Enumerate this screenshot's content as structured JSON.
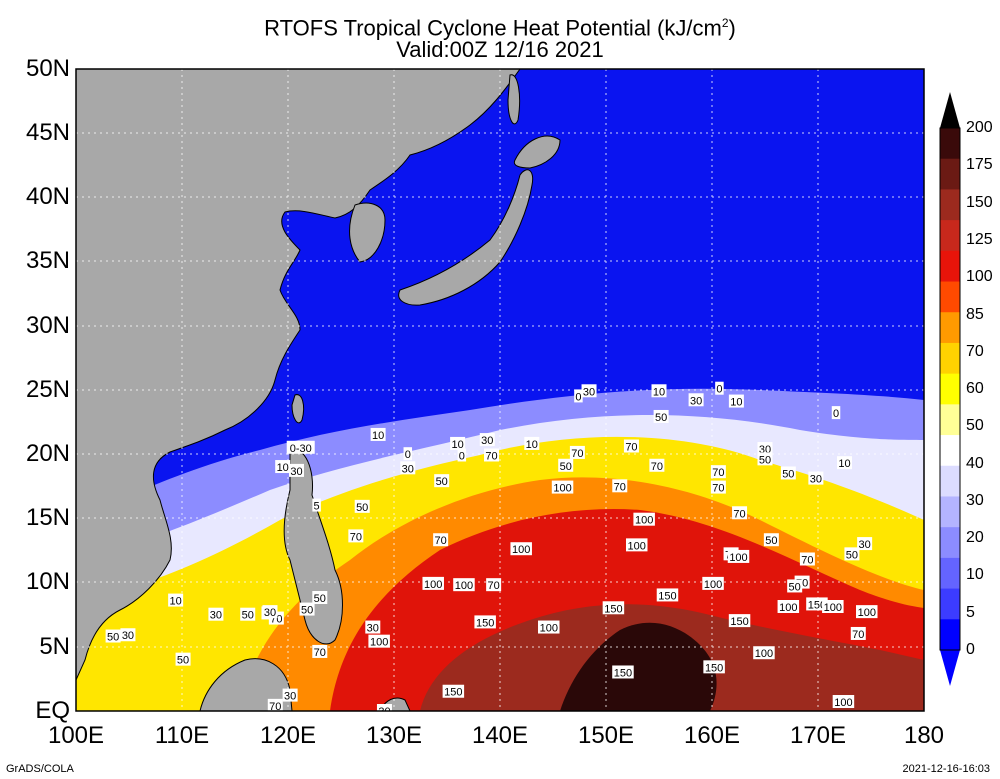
{
  "title": {
    "line1": "RTOFS Tropical Cyclone Heat Potential (kJ/cm",
    "line1_sup": "2",
    "line1_end": ")",
    "line2": "Valid:00Z 12/16 2021"
  },
  "map": {
    "lon_range": [
      100,
      180
    ],
    "lat_range": [
      0,
      50
    ],
    "y_ticks": [
      "50N",
      "45N",
      "40N",
      "35N",
      "30N",
      "25N",
      "20N",
      "15N",
      "10N",
      "5N",
      "EQ"
    ],
    "x_ticks": [
      "100E",
      "110E",
      "120E",
      "130E",
      "140E",
      "150E",
      "160E",
      "170E",
      "180"
    ],
    "grid": "dotted",
    "land_color": "#a8a8a8",
    "ocean_cold_color": "#0a14f0"
  },
  "colorbar": {
    "labels": [
      "200",
      "175",
      "150",
      "125",
      "100",
      "85",
      "70",
      "60",
      "50",
      "40",
      "30",
      "20",
      "10",
      "5",
      "0"
    ],
    "colors": [
      "#3a0a0a",
      "#6b1a14",
      "#9c2a1e",
      "#c8281c",
      "#e8140a",
      "#ff4a00",
      "#ff9a00",
      "#ffd200",
      "#ffff00",
      "#ffff96",
      "#ffffff",
      "#dcdcff",
      "#b4b4ff",
      "#8c8cff",
      "#6464ff",
      "#3c3cff",
      "#0000ff"
    ],
    "cap_top_color": "#000000",
    "cap_bottom_color": "#0000ff"
  },
  "contour_labels": [
    {
      "text": "10",
      "lon": 128.5,
      "lat": 21.5
    },
    {
      "text": "0-30",
      "lon": 121.2,
      "lat": 20.5
    },
    {
      "text": "10",
      "lon": 119.5,
      "lat": 19.0
    },
    {
      "text": "30",
      "lon": 120.8,
      "lat": 18.7
    },
    {
      "text": "0",
      "lon": 131.3,
      "lat": 20.0
    },
    {
      "text": "30",
      "lon": 131.3,
      "lat": 18.9
    },
    {
      "text": "50",
      "lon": 134.5,
      "lat": 17.9
    },
    {
      "text": "50",
      "lon": 127.0,
      "lat": 15.9
    },
    {
      "text": "5",
      "lon": 122.7,
      "lat": 16.0
    },
    {
      "text": "70",
      "lon": 126.4,
      "lat": 13.6
    },
    {
      "text": "70",
      "lon": 134.4,
      "lat": 13.3
    },
    {
      "text": "10",
      "lon": 136.0,
      "lat": 20.8
    },
    {
      "text": "0",
      "lon": 136.4,
      "lat": 19.9
    },
    {
      "text": "30",
      "lon": 138.8,
      "lat": 21.1
    },
    {
      "text": "70",
      "lon": 139.2,
      "lat": 19.9
    },
    {
      "text": "10",
      "lon": 143.0,
      "lat": 20.8
    },
    {
      "text": "50",
      "lon": 146.2,
      "lat": 19.1
    },
    {
      "text": "70",
      "lon": 147.3,
      "lat": 20.1
    },
    {
      "text": "100",
      "lon": 145.9,
      "lat": 17.4
    },
    {
      "text": "70",
      "lon": 151.3,
      "lat": 17.5
    },
    {
      "text": "70",
      "lon": 152.4,
      "lat": 20.6
    },
    {
      "text": "70",
      "lon": 154.8,
      "lat": 19.1
    },
    {
      "text": "50",
      "lon": 155.2,
      "lat": 22.9
    },
    {
      "text": "10",
      "lon": 155.0,
      "lat": 24.9
    },
    {
      "text": "30",
      "lon": 148.4,
      "lat": 24.9
    },
    {
      "text": "0",
      "lon": 147.4,
      "lat": 24.5
    },
    {
      "text": "30",
      "lon": 158.5,
      "lat": 24.2
    },
    {
      "text": "0",
      "lon": 160.7,
      "lat": 25.1
    },
    {
      "text": "10",
      "lon": 162.3,
      "lat": 24.1
    },
    {
      "text": "0",
      "lon": 171.7,
      "lat": 23.2
    },
    {
      "text": "70",
      "lon": 160.6,
      "lat": 18.6
    },
    {
      "text": "70",
      "lon": 160.6,
      "lat": 17.4
    },
    {
      "text": "100",
      "lon": 153.6,
      "lat": 14.9
    },
    {
      "text": "100",
      "lon": 152.9,
      "lat": 12.9
    },
    {
      "text": "100",
      "lon": 142.0,
      "lat": 12.6
    },
    {
      "text": "70",
      "lon": 162.6,
      "lat": 15.4
    },
    {
      "text": "70",
      "lon": 161.8,
      "lat": 12.2
    },
    {
      "text": "100",
      "lon": 162.5,
      "lat": 12.0
    },
    {
      "text": "50",
      "lon": 165.6,
      "lat": 13.3
    },
    {
      "text": "30",
      "lon": 165.0,
      "lat": 20.4
    },
    {
      "text": "50",
      "lon": 165.0,
      "lat": 19.6
    },
    {
      "text": "50",
      "lon": 167.2,
      "lat": 18.5
    },
    {
      "text": "30",
      "lon": 169.8,
      "lat": 18.1
    },
    {
      "text": "10",
      "lon": 172.5,
      "lat": 19.3
    },
    {
      "text": "70",
      "lon": 169.0,
      "lat": 11.8
    },
    {
      "text": "50",
      "lon": 173.2,
      "lat": 12.2
    },
    {
      "text": "30",
      "lon": 174.4,
      "lat": 13.0
    },
    {
      "text": "70",
      "lon": 168.5,
      "lat": 10.0
    },
    {
      "text": "50",
      "lon": 167.8,
      "lat": 9.7
    },
    {
      "text": "100",
      "lon": 160.1,
      "lat": 9.9
    },
    {
      "text": "150",
      "lon": 155.8,
      "lat": 9.0
    },
    {
      "text": "150",
      "lon": 150.7,
      "lat": 8.0
    },
    {
      "text": "100",
      "lon": 167.2,
      "lat": 8.1
    },
    {
      "text": "150",
      "lon": 169.9,
      "lat": 8.3
    },
    {
      "text": "100",
      "lon": 171.4,
      "lat": 8.1
    },
    {
      "text": "100",
      "lon": 174.6,
      "lat": 7.7
    },
    {
      "text": "150",
      "lon": 162.6,
      "lat": 7.0
    },
    {
      "text": "70",
      "lon": 173.8,
      "lat": 6.0
    },
    {
      "text": "100",
      "lon": 144.6,
      "lat": 6.5
    },
    {
      "text": "150",
      "lon": 138.6,
      "lat": 6.9
    },
    {
      "text": "100",
      "lon": 164.9,
      "lat": 4.5
    },
    {
      "text": "150",
      "lon": 160.2,
      "lat": 3.4
    },
    {
      "text": "150",
      "lon": 151.6,
      "lat": 3.0
    },
    {
      "text": "150",
      "lon": 135.6,
      "lat": 1.5
    },
    {
      "text": "100",
      "lon": 172.4,
      "lat": 0.7
    },
    {
      "text": "100",
      "lon": 133.7,
      "lat": 9.9
    },
    {
      "text": "100",
      "lon": 136.6,
      "lat": 9.8
    },
    {
      "text": "70",
      "lon": 139.4,
      "lat": 9.8
    },
    {
      "text": "100",
      "lon": 128.6,
      "lat": 5.4
    },
    {
      "text": "70",
      "lon": 123.0,
      "lat": 4.6
    },
    {
      "text": "30",
      "lon": 128.0,
      "lat": 6.5
    },
    {
      "text": "50",
      "lon": 123.0,
      "lat": 8.8
    },
    {
      "text": "50",
      "lon": 121.8,
      "lat": 7.9
    },
    {
      "text": "70",
      "lon": 118.9,
      "lat": 7.2
    },
    {
      "text": "5",
      "lon": 117.9,
      "lat": 7.6
    },
    {
      "text": "30",
      "lon": 118.3,
      "lat": 7.7
    },
    {
      "text": "50",
      "lon": 116.2,
      "lat": 7.5
    },
    {
      "text": "30",
      "lon": 113.2,
      "lat": 7.5
    },
    {
      "text": "10",
      "lon": 109.4,
      "lat": 8.6
    },
    {
      "text": "50",
      "lon": 110.1,
      "lat": 4.0
    },
    {
      "text": "50",
      "lon": 103.5,
      "lat": 5.8
    },
    {
      "text": "30",
      "lon": 104.9,
      "lat": 5.9
    },
    {
      "text": "30",
      "lon": 120.2,
      "lat": 1.2
    },
    {
      "text": "70",
      "lon": 118.8,
      "lat": 0.4
    },
    {
      "text": "30",
      "lon": 129.1,
      "lat": 0.0
    }
  ],
  "footer": {
    "left": "GrADS/COLA",
    "right": "2021-12-16-16:03"
  }
}
